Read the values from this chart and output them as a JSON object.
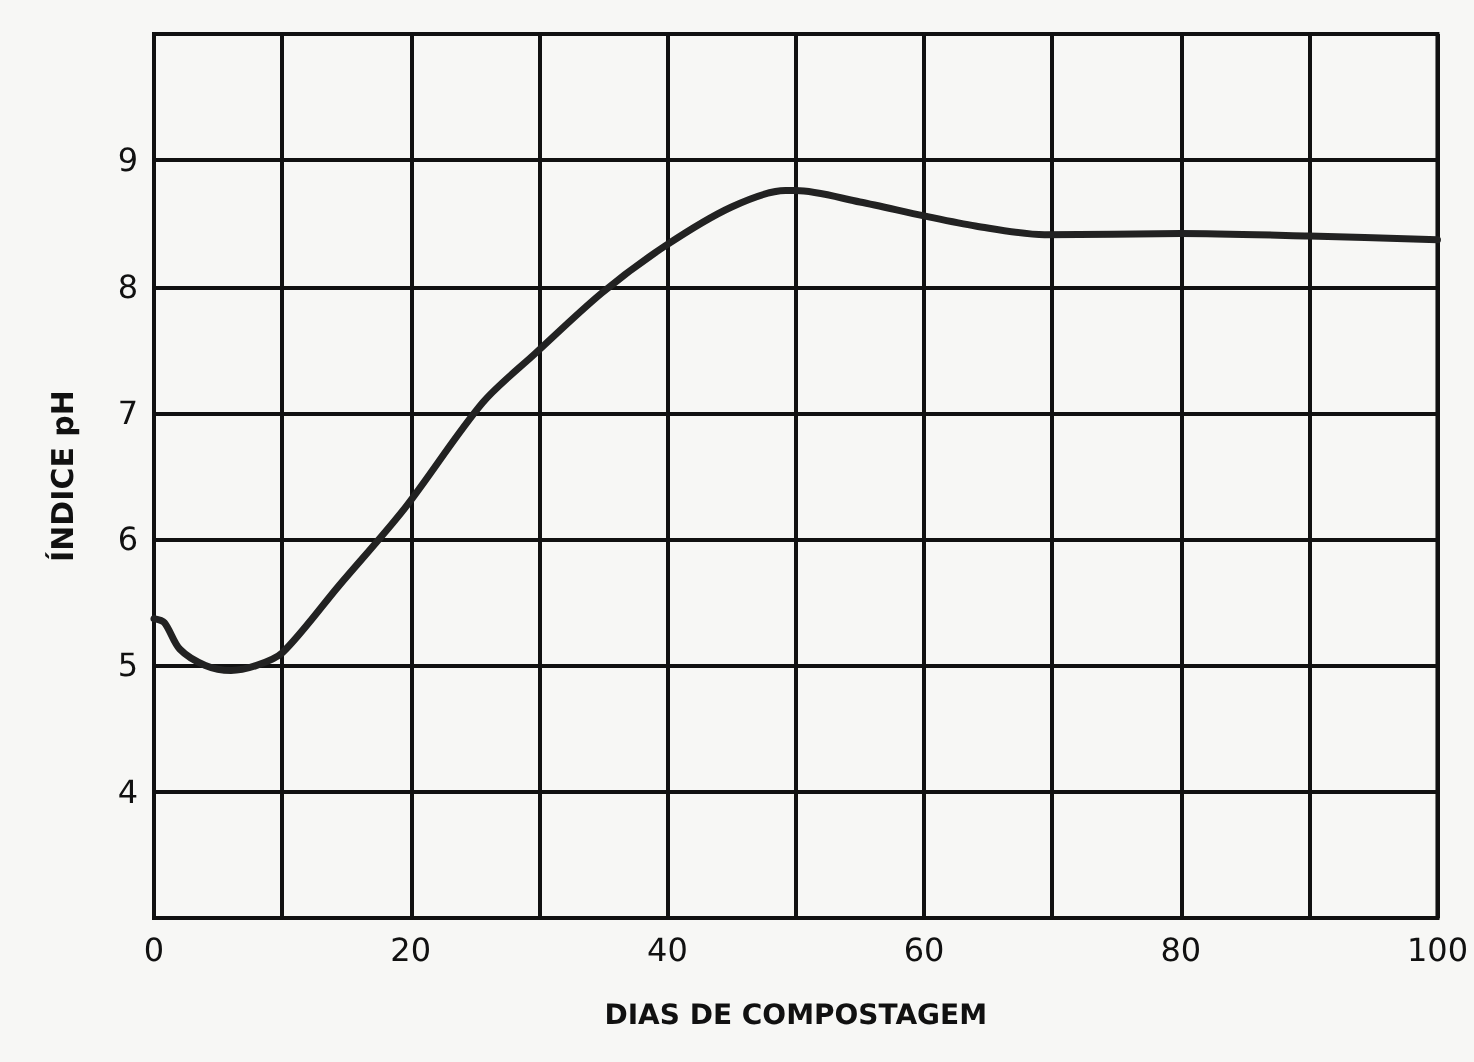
{
  "chart_data": {
    "type": "line",
    "xlabel": "DIAS DE COMPOSTAGEM",
    "ylabel": "ÍNDICE pH",
    "x": [
      0,
      0.8,
      2,
      4,
      6,
      8,
      10,
      14.4,
      19.5,
      25.6,
      29.7,
      34.9,
      39.8,
      45,
      49.2,
      50,
      55,
      60,
      64,
      69.4,
      80,
      90,
      100
    ],
    "series": [
      {
        "color": "#222222",
        "values": [
          5.37,
          5.34,
          5.13,
          5.0,
          4.96,
          5.0,
          5.1,
          5.63,
          6.24,
          7.08,
          7.47,
          7.95,
          8.32,
          8.63,
          8.76,
          8.76,
          8.67,
          8.56,
          8.48,
          8.41,
          8.42,
          8.4,
          8.37
        ]
      }
    ],
    "xlim": [
      0,
      100
    ],
    "xticks": [
      0,
      {
        "value": 10,
        "label": null
      },
      20,
      {
        "value": 30,
        "label": null
      },
      40,
      {
        "value": 50,
        "label": null
      },
      60,
      {
        "value": 70,
        "label": null
      },
      80,
      {
        "value": 90,
        "label": null
      },
      100
    ],
    "ylim": [
      3,
      10
    ],
    "yticks": [
      {
        "value": 3,
        "label": null
      },
      4,
      5,
      6,
      7,
      8,
      9,
      {
        "value": 10,
        "label": null
      }
    ],
    "grid": true,
    "marker": "none",
    "line_style": "solid"
  }
}
